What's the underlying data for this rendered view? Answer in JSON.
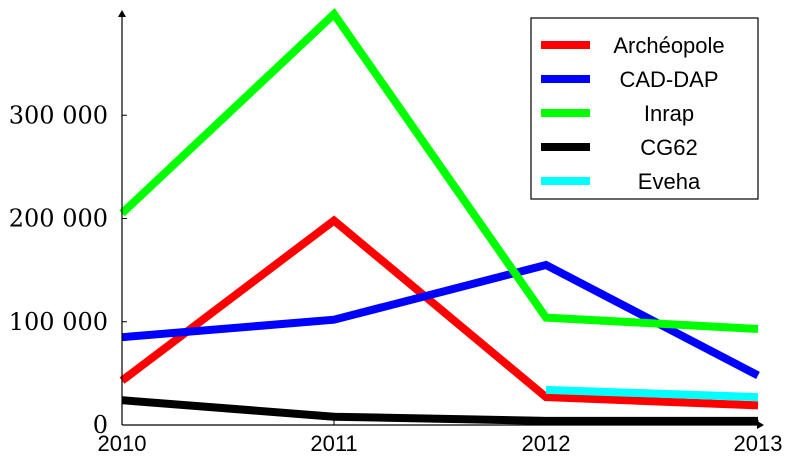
{
  "chart_data": {
    "type": "line",
    "title": "",
    "xlabel": "",
    "ylabel": "",
    "x": [
      2010,
      2011,
      2012,
      2013
    ],
    "xlim": [
      2010,
      2013
    ],
    "ylim": [
      0,
      400000
    ],
    "y_ticks": [
      0,
      100000,
      200000,
      300000
    ],
    "y_tick_labels": [
      "0",
      "100 000",
      "200 000",
      "300 000"
    ],
    "x_tick_labels": [
      "2010",
      "2011",
      "2012",
      "2013"
    ],
    "grid": false,
    "legend_position": "top-right",
    "series": [
      {
        "name": "Archéopole",
        "color": "#ff0000",
        "x": [
          2010,
          2011,
          2012,
          2013
        ],
        "values": [
          43000,
          198000,
          27000,
          19000
        ]
      },
      {
        "name": "CAD-DAP",
        "color": "#0000ff",
        "x": [
          2010,
          2011,
          2012,
          2013
        ],
        "values": [
          85000,
          102000,
          155000,
          48000
        ]
      },
      {
        "name": "Inrap",
        "color": "#00ff00",
        "x": [
          2010,
          2011,
          2012,
          2013
        ],
        "values": [
          205000,
          398000,
          104000,
          93000
        ]
      },
      {
        "name": "CG62",
        "color": "#000000",
        "x": [
          2010,
          2011,
          2012,
          2013
        ],
        "values": [
          24000,
          8000,
          4000,
          4000
        ]
      },
      {
        "name": "Eveha",
        "color": "#00ffff",
        "x": [
          2012,
          2013
        ],
        "values": [
          34000,
          27000
        ]
      }
    ]
  }
}
